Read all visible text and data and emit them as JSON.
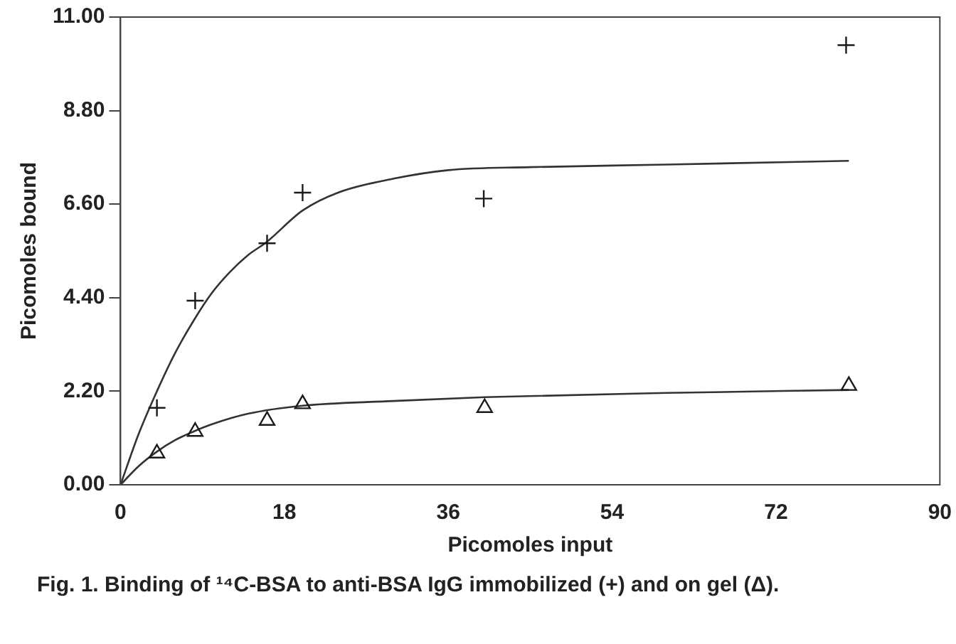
{
  "chart_data": {
    "type": "scatter",
    "xlabel": "Picomoles input",
    "ylabel": "Picomoles bound",
    "xlim": [
      0,
      90
    ],
    "xticks": [
      0,
      18,
      36,
      54,
      72,
      90
    ],
    "ylim": [
      0,
      11
    ],
    "yticks": [
      {
        "value": 0,
        "label": "0.00"
      },
      {
        "value": 2.2,
        "label": "2.20"
      },
      {
        "value": 4.4,
        "label": "4.40"
      },
      {
        "value": 6.6,
        "label": "6.60"
      },
      {
        "value": 8.8,
        "label": "8.80"
      },
      {
        "value": 11,
        "label": "11.00"
      }
    ],
    "grid": false,
    "legend": false,
    "series": [
      {
        "type": "scatter",
        "marker": "cross",
        "color": "#1a1a1a",
        "x": [
          4,
          8.2,
          16.1,
          20,
          39.9,
          79.7
        ],
        "values": [
          1.81,
          4.33,
          5.68,
          6.87,
          6.73,
          10.34
        ]
      },
      {
        "type": "scatter",
        "marker": "triangle",
        "color": "#1a1a1a",
        "x": [
          4,
          8.2,
          16.1,
          20,
          40,
          80
        ],
        "values": [
          0.74,
          1.25,
          1.51,
          1.9,
          1.81,
          2.33
        ]
      },
      {
        "type": "line",
        "marker": "none",
        "color": "#333333",
        "x": [
          0,
          2,
          4,
          6,
          8,
          10,
          12,
          14,
          16,
          20,
          24,
          30,
          36,
          45,
          60,
          80
        ],
        "values": [
          0,
          1.2,
          2.2,
          3.1,
          3.85,
          4.5,
          5,
          5.4,
          5.7,
          6.45,
          6.88,
          7.2,
          7.4,
          7.47,
          7.53,
          7.62
        ]
      },
      {
        "type": "line",
        "marker": "none",
        "color": "#333333",
        "x": [
          0,
          2,
          4,
          6,
          8,
          10,
          14,
          20,
          30,
          40,
          60,
          80
        ],
        "values": [
          0,
          0.44,
          0.78,
          1.05,
          1.25,
          1.42,
          1.67,
          1.86,
          1.97,
          2.06,
          2.16,
          2.23
        ]
      }
    ],
    "annotations": [
      "Fig. 1. Binding of ¹⁴C-BSA to anti-BSA IgG immobilized (+) and on gel (Δ)."
    ]
  }
}
